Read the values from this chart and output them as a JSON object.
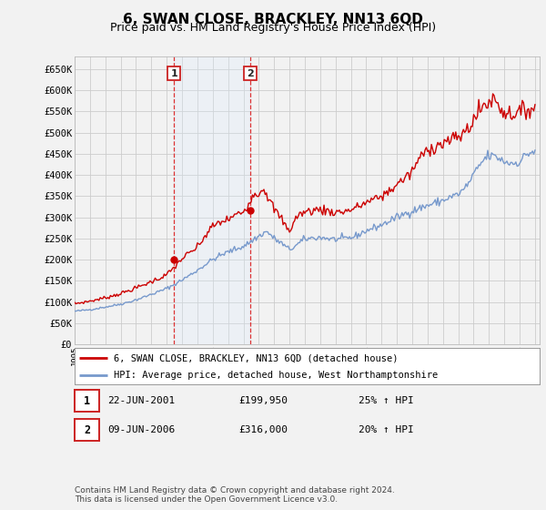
{
  "title": "6, SWAN CLOSE, BRACKLEY, NN13 6QD",
  "subtitle": "Price paid vs. HM Land Registry's House Price Index (HPI)",
  "title_fontsize": 11,
  "subtitle_fontsize": 9,
  "ylim": [
    0,
    680000
  ],
  "yticks": [
    0,
    50000,
    100000,
    150000,
    200000,
    250000,
    300000,
    350000,
    400000,
    450000,
    500000,
    550000,
    600000,
    650000
  ],
  "ytick_labels": [
    "£0",
    "£50K",
    "£100K",
    "£150K",
    "£200K",
    "£250K",
    "£300K",
    "£350K",
    "£400K",
    "£450K",
    "£500K",
    "£550K",
    "£600K",
    "£650K"
  ],
  "background_color": "#f2f2f2",
  "plot_bg_color": "#f2f2f2",
  "grid_color": "#cccccc",
  "shade_color": "#ddeeff",
  "vline1_x": 2001.47,
  "vline2_x": 2006.44,
  "vline_color": "#dd3333",
  "marker1_x": 2001.47,
  "marker1_y": 199950,
  "marker2_x": 2006.44,
  "marker2_y": 316000,
  "sale_line_color": "#cc0000",
  "hpi_line_color": "#7799cc",
  "legend_label_sale": "6, SWAN CLOSE, BRACKLEY, NN13 6QD (detached house)",
  "legend_label_hpi": "HPI: Average price, detached house, West Northamptonshire",
  "table_row1": [
    "1",
    "22-JUN-2001",
    "£199,950",
    "25% ↑ HPI"
  ],
  "table_row2": [
    "2",
    "09-JUN-2006",
    "£316,000",
    "20% ↑ HPI"
  ],
  "footer_text": "Contains HM Land Registry data © Crown copyright and database right 2024.\nThis data is licensed under the Open Government Licence v3.0.",
  "xmin": 1995.0,
  "xmax": 2025.3
}
